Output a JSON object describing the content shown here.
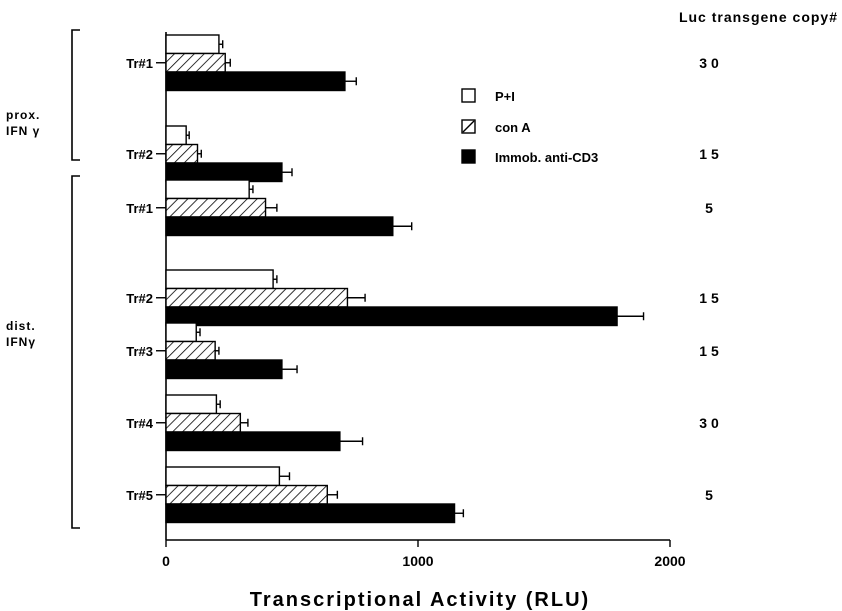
{
  "chart_data": {
    "type": "bar",
    "orientation": "horizontal",
    "xlabel": "Transcriptional Activity (RLU)",
    "xlim": [
      0,
      2000
    ],
    "xticks": [
      "0",
      "1000",
      "2000"
    ],
    "copy_header": "Luc transgene copy#",
    "series": [
      {
        "name": "P+I",
        "pattern": "open",
        "color": "#ffffff"
      },
      {
        "name": "con A",
        "pattern": "hatched",
        "color": "#000000"
      },
      {
        "name": "Immob. anti-CD3",
        "pattern": "solid",
        "color": "#000000"
      }
    ],
    "groups": [
      {
        "group_label": "prox. IFN γ",
        "lines": [
          {
            "label": "Tr#1",
            "copy": "3 0",
            "values": [
              210,
              235,
              710
            ],
            "errors": [
              15,
              20,
              45
            ]
          },
          {
            "label": "Tr#2",
            "copy": "1 5",
            "values": [
              80,
              125,
              460
            ],
            "errors": [
              12,
              15,
              40
            ]
          }
        ]
      },
      {
        "group_label": "dist. IFNγ",
        "lines": [
          {
            "label": "Tr#1",
            "copy": "5",
            "values": [
              330,
              395,
              900
            ],
            "errors": [
              15,
              45,
              75
            ]
          },
          {
            "label": "Tr#2",
            "copy": "1 5",
            "values": [
              425,
              720,
              1790
            ],
            "errors": [
              15,
              70,
              105
            ]
          },
          {
            "label": "Tr#3",
            "copy": "1 5",
            "values": [
              120,
              195,
              460
            ],
            "errors": [
              15,
              15,
              60
            ]
          },
          {
            "label": "Tr#4",
            "copy": "3 0",
            "values": [
              200,
              295,
              690
            ],
            "errors": [
              15,
              30,
              90
            ]
          },
          {
            "label": "Tr#5",
            "copy": "5",
            "values": [
              450,
              640,
              1145
            ],
            "errors": [
              40,
              40,
              35
            ]
          }
        ]
      }
    ]
  }
}
